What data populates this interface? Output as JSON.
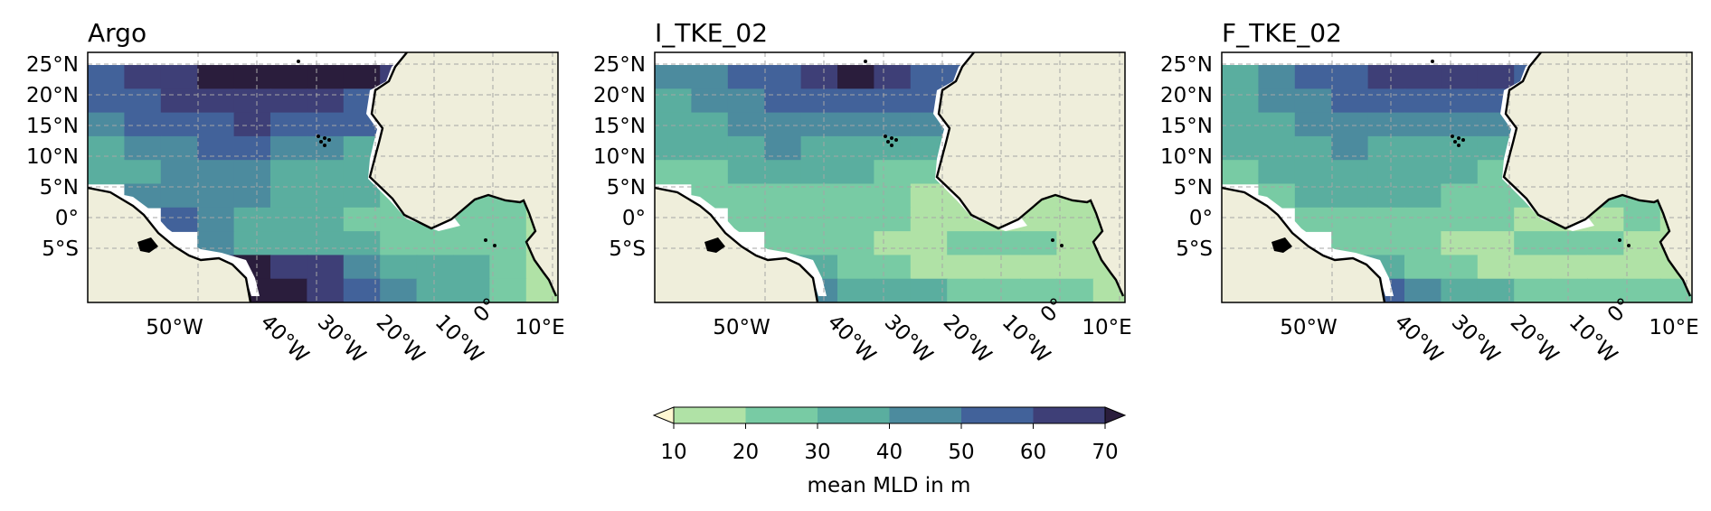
{
  "panels": [
    {
      "title": "Argo",
      "shade_grid": [
        [
          5,
          6,
          6,
          7,
          7,
          7,
          7,
          7,
          6,
          6,
          -1,
          -1,
          -1,
          -1
        ],
        [
          5,
          5,
          6,
          6,
          6,
          6,
          6,
          5,
          5,
          6,
          -1,
          -1,
          -1,
          -1
        ],
        [
          4,
          5,
          5,
          5,
          6,
          5,
          5,
          5,
          5,
          4,
          -1,
          -1,
          -1,
          -1
        ],
        [
          3,
          4,
          4,
          5,
          5,
          4,
          4,
          3,
          3,
          3,
          -1,
          -1,
          -1,
          -1
        ],
        [
          3,
          3,
          4,
          4,
          4,
          3,
          3,
          3,
          2,
          2,
          -1,
          -1,
          -1,
          -1
        ],
        [
          -1,
          4,
          4,
          4,
          4,
          3,
          3,
          3,
          2,
          2,
          2,
          2,
          -1,
          -1
        ],
        [
          -1,
          -1,
          5,
          4,
          3,
          3,
          3,
          2,
          2,
          2,
          2,
          2,
          1,
          -1
        ],
        [
          -1,
          -1,
          -1,
          4,
          3,
          3,
          3,
          3,
          2,
          2,
          2,
          2,
          1,
          0
        ],
        [
          -1,
          -1,
          -1,
          6,
          7,
          6,
          6,
          4,
          3,
          3,
          3,
          2,
          1,
          1
        ],
        [
          -1,
          -1,
          -1,
          6,
          7,
          7,
          6,
          5,
          4,
          3,
          3,
          2,
          1,
          1
        ]
      ]
    },
    {
      "title": "I_TKE_02",
      "shade_grid": [
        [
          4,
          4,
          5,
          5,
          6,
          7,
          6,
          5,
          5,
          5,
          -1,
          -1,
          -1,
          -1
        ],
        [
          3,
          4,
          4,
          5,
          5,
          5,
          5,
          5,
          4,
          5,
          -1,
          -1,
          -1,
          -1
        ],
        [
          3,
          3,
          4,
          4,
          4,
          4,
          4,
          4,
          4,
          3,
          -1,
          -1,
          -1,
          -1
        ],
        [
          3,
          3,
          3,
          4,
          3,
          3,
          3,
          3,
          2,
          1,
          -1,
          -1,
          -1,
          -1
        ],
        [
          2,
          2,
          3,
          3,
          3,
          3,
          2,
          2,
          1,
          1,
          -1,
          -1,
          -1,
          -1
        ],
        [
          -1,
          2,
          2,
          2,
          2,
          2,
          2,
          1,
          1,
          1,
          1,
          1,
          -1,
          -1
        ],
        [
          -1,
          -1,
          2,
          2,
          2,
          2,
          2,
          1,
          1,
          1,
          1,
          1,
          1,
          -1
        ],
        [
          -1,
          -1,
          -1,
          2,
          2,
          2,
          1,
          1,
          2,
          2,
          2,
          1,
          1,
          0
        ],
        [
          -1,
          -1,
          -1,
          3,
          3,
          2,
          2,
          1,
          1,
          1,
          1,
          1,
          1,
          0
        ],
        [
          -1,
          -1,
          -1,
          4,
          4,
          3,
          3,
          3,
          2,
          2,
          2,
          2,
          1,
          1
        ]
      ]
    },
    {
      "title": "F_TKE_02",
      "shade_grid": [
        [
          3,
          4,
          5,
          5,
          6,
          6,
          6,
          6,
          5,
          5,
          -1,
          -1,
          -1,
          -1
        ],
        [
          3,
          4,
          4,
          5,
          5,
          5,
          5,
          5,
          5,
          5,
          -1,
          -1,
          -1,
          -1
        ],
        [
          3,
          3,
          4,
          4,
          4,
          4,
          4,
          4,
          4,
          3,
          -1,
          -1,
          -1,
          -1
        ],
        [
          3,
          3,
          3,
          4,
          3,
          3,
          3,
          3,
          2,
          2,
          -1,
          -1,
          -1,
          -1
        ],
        [
          2,
          3,
          3,
          3,
          3,
          3,
          3,
          2,
          2,
          2,
          -1,
          -1,
          -1,
          -1
        ],
        [
          -1,
          2,
          3,
          3,
          3,
          3,
          2,
          2,
          2,
          2,
          2,
          2,
          -1,
          -1
        ],
        [
          -1,
          -1,
          2,
          2,
          2,
          2,
          2,
          2,
          1,
          1,
          1,
          2,
          1,
          -1
        ],
        [
          -1,
          -1,
          -1,
          2,
          2,
          2,
          1,
          1,
          2,
          2,
          2,
          1,
          1,
          0
        ],
        [
          -1,
          -1,
          -1,
          3,
          3,
          2,
          2,
          1,
          1,
          1,
          1,
          1,
          1,
          0
        ],
        [
          -1,
          -1,
          -1,
          5,
          5,
          4,
          3,
          3,
          2,
          2,
          2,
          2,
          2,
          1
        ]
      ]
    }
  ],
  "lat_ticks": [
    "25°N",
    "20°N",
    "15°N",
    "10°N",
    "5°N",
    "0°",
    "5°S"
  ],
  "lon_ticks": [
    "50°W",
    "40°W",
    "30°W",
    "20°W",
    "10°W",
    "0°",
    "10°E"
  ],
  "colorbar": {
    "label": "mean MLD in m",
    "ticks": [
      "10",
      "20",
      "30",
      "40",
      "50",
      "60",
      "70"
    ],
    "bins_label": [
      "<10",
      "10–20",
      "20–30",
      "30–40",
      "40–50",
      "50–60",
      "60–70",
      ">70"
    ],
    "colors": [
      "#fff8d2",
      "#b0e2a6",
      "#78cba4",
      "#5aae9f",
      "#4c8b9e",
      "#42629a",
      "#3e3f77",
      "#2a1d3c"
    ]
  },
  "map_colors": {
    "land": "#efeedb",
    "coast": "#000000",
    "ocean_missing": "#ffffff",
    "grid": "#a6a6a6"
  }
}
